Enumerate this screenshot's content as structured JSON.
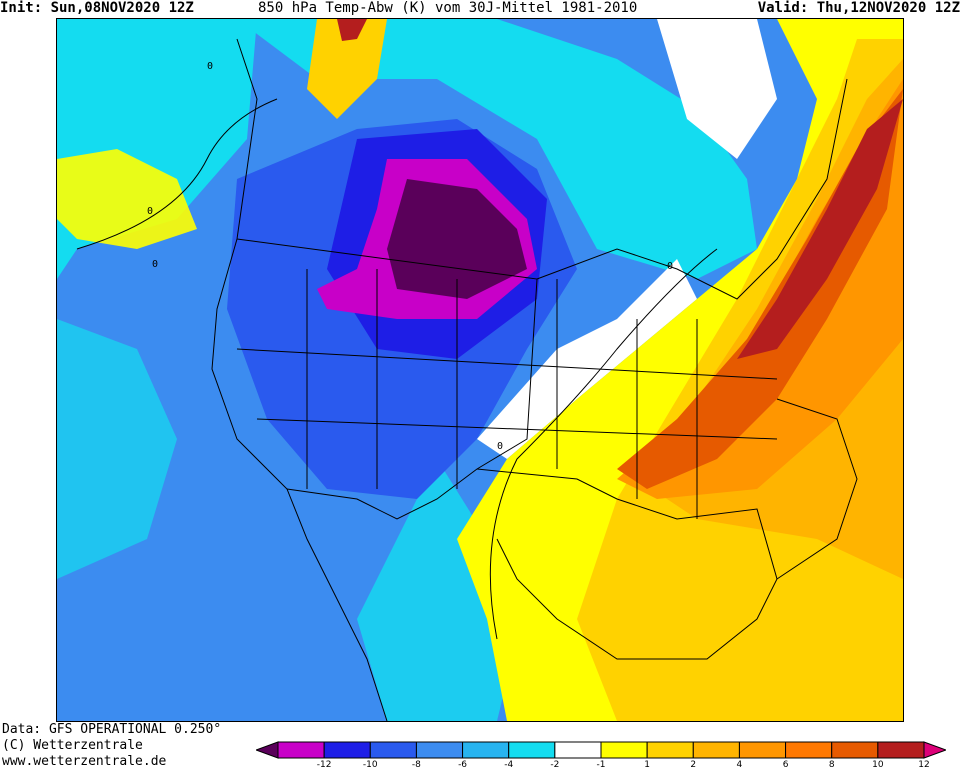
{
  "header": {
    "init": "Init: Sun,08NOV2020 12Z",
    "title": "850 hPa Temp-Abw (K) vom 30J-Mittel 1981-2010",
    "valid": "Valid: Thu,12NOV2020 12Z"
  },
  "footer": {
    "data": "Data: GFS OPERATIONAL 0.250°",
    "copyright": "(C) Wetterzentrale",
    "url": "www.wetterzentrale.de"
  },
  "legend": {
    "colors": [
      "#5a005a",
      "#c800c8",
      "#1e1ee6",
      "#2a5aee",
      "#3c8cf0",
      "#28b4f0",
      "#14dcf0",
      "#ffffff",
      "#ffff00",
      "#ffd200",
      "#ffb400",
      "#ff9600",
      "#ff7800",
      "#e65a00",
      "#b41e1e",
      "#dc0078"
    ],
    "ticks": [
      "-12",
      "-10",
      "-8",
      "-6",
      "-4",
      "-2",
      "-1",
      "1",
      "2",
      "4",
      "6",
      "8",
      "10",
      "12"
    ],
    "tick_positions": [
      1,
      2,
      3,
      4,
      5,
      6,
      7,
      8,
      9,
      10,
      11,
      12,
      13,
      14
    ]
  },
  "map": {
    "contour_labels": [
      "0",
      "0",
      "0",
      "0",
      "0"
    ],
    "colors": {
      "ocean_cold": "#3c8cf0",
      "cool": "#14dcf0",
      "cold": "#2a5aee",
      "very_cold": "#1e1ee6",
      "magenta": "#c800c8",
      "deep_purple": "#5a005a",
      "warm": "#ffff00",
      "warmer": "#ffd200",
      "orange": "#ffb400",
      "dark_orange": "#ff9600",
      "red_orange": "#e65a00",
      "dark_red": "#b41e1e"
    }
  }
}
